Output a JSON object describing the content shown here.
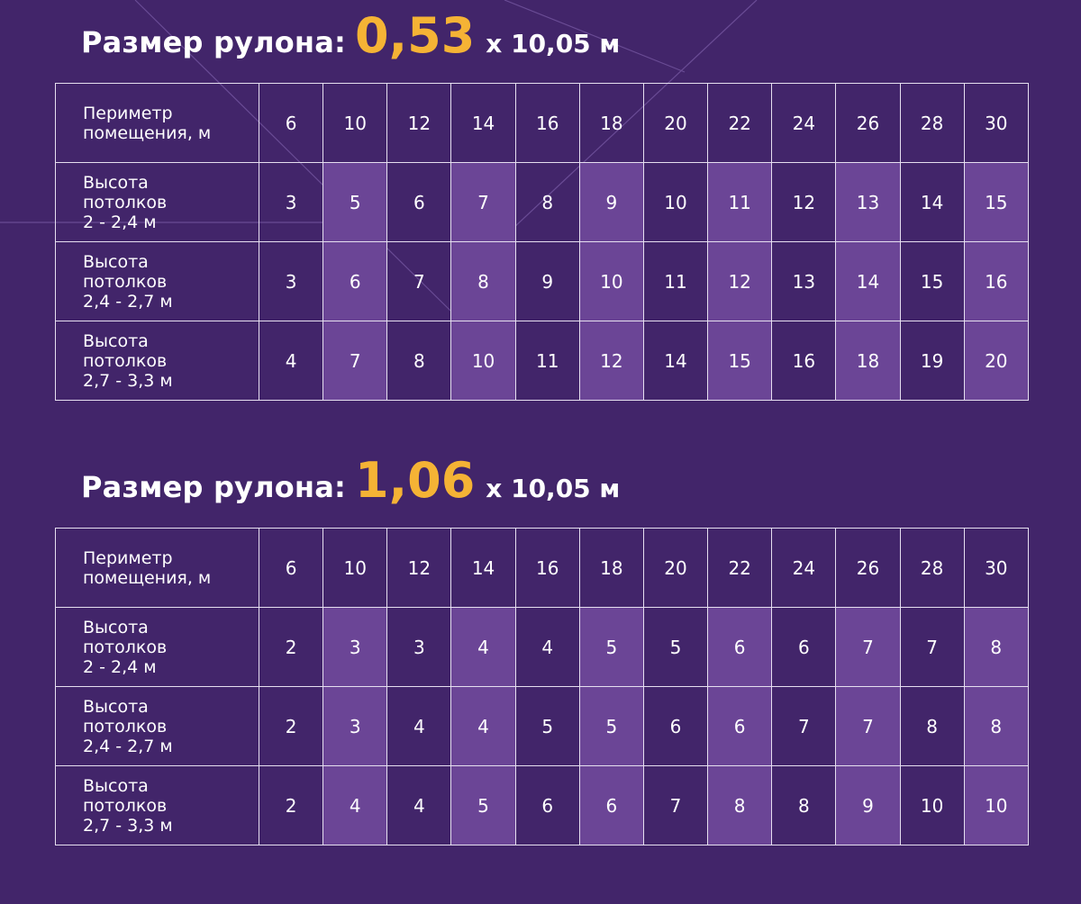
{
  "colors": {
    "background": "#42256a",
    "highlight": "#6b4596",
    "accent": "#f5b335",
    "border": "#e6dff0"
  },
  "tables": [
    {
      "title": {
        "prefix": "Размер рулона:",
        "width": "0,53",
        "suffix": "х 10,05 м"
      },
      "header": {
        "label": [
          "Периметр",
          "помещения, м"
        ],
        "values": [
          "6",
          "10",
          "12",
          "14",
          "16",
          "18",
          "20",
          "22",
          "24",
          "26",
          "28",
          "30"
        ]
      },
      "rows": [
        {
          "label": [
            "Высота",
            "потолков",
            "2 - 2,4 м"
          ],
          "values": [
            "3",
            "5",
            "6",
            "7",
            "8",
            "9",
            "10",
            "11",
            "12",
            "13",
            "14",
            "15"
          ]
        },
        {
          "label": [
            "Высота",
            "потолков",
            "2,4 - 2,7 м"
          ],
          "values": [
            "3",
            "6",
            "7",
            "8",
            "9",
            "10",
            "11",
            "12",
            "13",
            "14",
            "15",
            "16"
          ]
        },
        {
          "label": [
            "Высота",
            "потолков",
            "2,7 - 3,3 м"
          ],
          "values": [
            "4",
            "7",
            "8",
            "10",
            "11",
            "12",
            "14",
            "15",
            "16",
            "18",
            "19",
            "20"
          ]
        }
      ]
    },
    {
      "title": {
        "prefix": "Размер рулона:",
        "width": "1,06",
        "suffix": "х 10,05 м"
      },
      "header": {
        "label": [
          "Периметр",
          "помещения, м"
        ],
        "values": [
          "6",
          "10",
          "12",
          "14",
          "16",
          "18",
          "20",
          "22",
          "24",
          "26",
          "28",
          "30"
        ]
      },
      "rows": [
        {
          "label": [
            "Высота",
            "потолков",
            "2 - 2,4 м"
          ],
          "values": [
            "2",
            "3",
            "3",
            "4",
            "4",
            "5",
            "5",
            "6",
            "6",
            "7",
            "7",
            "8"
          ]
        },
        {
          "label": [
            "Высота",
            "потолков",
            "2,4 - 2,7 м"
          ],
          "values": [
            "2",
            "3",
            "4",
            "4",
            "5",
            "5",
            "6",
            "6",
            "7",
            "7",
            "8",
            "8"
          ]
        },
        {
          "label": [
            "Высота",
            "потолков",
            "2,7 - 3,3 м"
          ],
          "values": [
            "2",
            "4",
            "4",
            "5",
            "6",
            "6",
            "7",
            "8",
            "8",
            "9",
            "10",
            "10"
          ]
        }
      ]
    }
  ]
}
